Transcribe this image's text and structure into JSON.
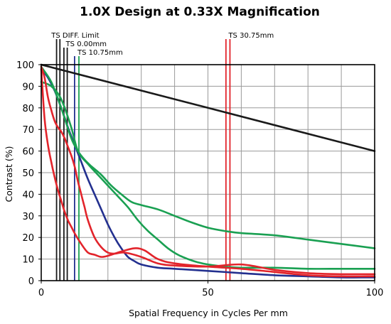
{
  "chart_data": {
    "type": "line",
    "title": "1.0X Design at 0.33X Magnification",
    "xlabel": "Spatial Frequency in Cycles Per mm",
    "ylabel": "Contrast (%)",
    "xlim": [
      0,
      100
    ],
    "ylim": [
      0,
      100
    ],
    "x_ticks": [
      0,
      50,
      100
    ],
    "y_ticks": [
      0,
      10,
      20,
      30,
      40,
      50,
      60,
      70,
      80,
      90,
      100
    ],
    "grid": true,
    "colors": {
      "black": "#1a1a1a",
      "blue": "#23308f",
      "green": "#1aa052",
      "red": "#e2242b",
      "grid": "#9a9a9a"
    },
    "annotations": [
      {
        "label": "TS DIFF. Limit",
        "x_lines": [
          4.6,
          5.6
        ],
        "color": "#1a1a1a",
        "level": 0
      },
      {
        "label": "TS 0.00mm",
        "x_lines": [
          6.8,
          7.8
        ],
        "color": "#1a1a1a",
        "level": 1
      },
      {
        "label": "TS 10.75mm",
        "x_lines": [
          10.0,
          11.3
        ],
        "color": "#23308f",
        "level": 2,
        "second_color": "#1aa052"
      },
      {
        "label": "TS 30.75mm",
        "x_lines": [
          55.4,
          56.6
        ],
        "color": "#e2242b",
        "level": 0
      }
    ],
    "series": [
      {
        "color": "#1a1a1a",
        "x": [
          0,
          100
        ],
        "y": [
          100,
          60
        ]
      },
      {
        "color": "#23308f",
        "x": [
          0,
          2,
          4,
          6,
          8,
          10,
          12,
          14,
          16,
          18,
          20,
          22,
          24,
          26,
          28,
          30,
          35,
          40,
          50,
          60,
          70,
          80,
          90,
          100
        ],
        "y": [
          98,
          94,
          88,
          80,
          71,
          63,
          55,
          47,
          40,
          33,
          26,
          20,
          15,
          11,
          9,
          7.5,
          6,
          5.5,
          4.5,
          3.5,
          2.5,
          2,
          1.5,
          1.5
        ]
      },
      {
        "color": "#1aa052",
        "x": [
          0,
          3,
          6,
          9,
          11,
          13,
          15,
          18,
          21,
          24,
          27,
          30,
          35,
          40,
          45,
          50,
          55,
          60,
          70,
          80,
          90,
          100
        ],
        "y": [
          99,
          92,
          80,
          66,
          60,
          56,
          53,
          49,
          44,
          40,
          36.5,
          35,
          33,
          30,
          27,
          24.5,
          23,
          22,
          21,
          19,
          17,
          15
        ]
      },
      {
        "color": "#1aa052",
        "x": [
          0,
          3,
          6,
          9,
          11,
          14,
          17,
          20,
          23,
          26,
          29,
          32,
          35,
          38,
          41,
          44,
          47,
          50,
          55,
          60,
          70,
          80,
          90,
          100
        ],
        "y": [
          92,
          90,
          84,
          71,
          60,
          54,
          49,
          44,
          39,
          34,
          28,
          23,
          19,
          15,
          12,
          10,
          8.5,
          7.5,
          6.5,
          6,
          6,
          5.5,
          5.5,
          5.5
        ]
      },
      {
        "color": "#e2242b",
        "x": [
          0,
          1,
          2,
          3,
          4,
          5,
          6,
          7,
          8,
          9,
          10,
          11,
          12,
          13,
          14,
          16,
          18,
          20,
          22,
          25,
          30,
          35,
          40,
          50,
          60,
          70,
          80,
          90,
          100
        ],
        "y": [
          99,
          94,
          85,
          79,
          74,
          71,
          69,
          66,
          62,
          58,
          53,
          46,
          40,
          34,
          28,
          20,
          15.5,
          13,
          12.5,
          13,
          11,
          8,
          7,
          6.5,
          7.5,
          5,
          3.5,
          3,
          3
        ]
      },
      {
        "color": "#e2242b",
        "x": [
          0,
          1,
          2,
          3,
          4,
          5,
          6,
          7,
          8,
          9,
          10,
          12,
          14,
          16,
          18,
          20,
          24,
          28,
          31,
          35,
          40,
          50,
          60,
          70,
          80,
          90,
          100
        ],
        "y": [
          98,
          75,
          63,
          55,
          48,
          42,
          37,
          32,
          28,
          25,
          22,
          17,
          13,
          12,
          11,
          11.5,
          13.5,
          15,
          14,
          10,
          8,
          6.5,
          5.5,
          4,
          2.5,
          2,
          2
        ]
      }
    ]
  }
}
